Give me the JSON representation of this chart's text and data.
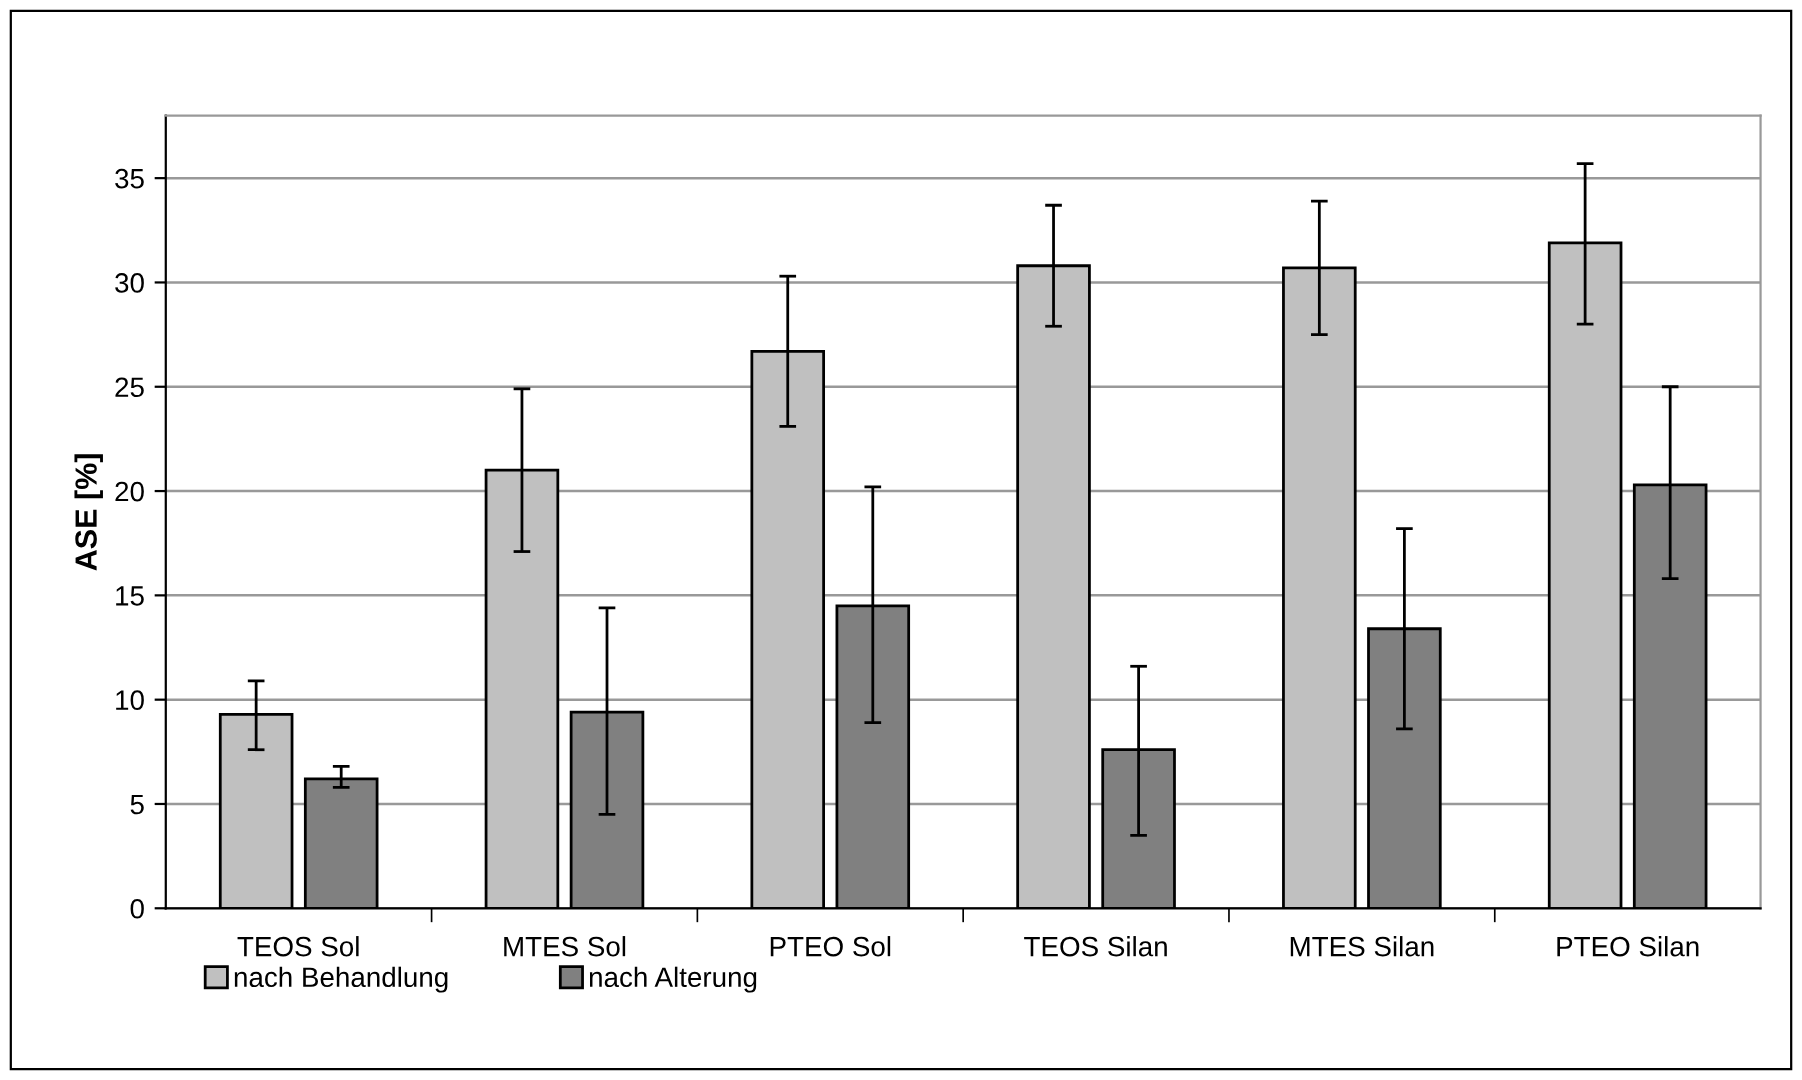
{
  "chart_data": {
    "type": "bar",
    "ylabel": "ASE [%]",
    "categories": [
      "TEOS Sol",
      "MTES Sol",
      "PTEO Sol",
      "TEOS Silan",
      "MTES Silan",
      "PTEO Silan"
    ],
    "series": [
      {
        "name": "nach Behandlung",
        "color": "#c0c0c0",
        "values": [
          9.3,
          21.0,
          26.7,
          30.8,
          30.7,
          31.9
        ],
        "errors": [
          [
            7.6,
            10.9
          ],
          [
            17.1,
            24.9
          ],
          [
            23.1,
            30.3
          ],
          [
            27.9,
            33.7
          ],
          [
            27.5,
            33.9
          ],
          [
            28.0,
            35.7
          ]
        ]
      },
      {
        "name": "nach Alterung",
        "color": "#808080",
        "values": [
          6.2,
          9.4,
          14.5,
          7.6,
          13.4,
          20.3
        ],
        "errors": [
          [
            5.8,
            6.8
          ],
          [
            4.5,
            14.4
          ],
          [
            8.9,
            20.2
          ],
          [
            3.5,
            11.6
          ],
          [
            8.6,
            18.2
          ],
          [
            15.8,
            25.0
          ]
        ]
      }
    ],
    "ylim": [
      0,
      38
    ],
    "yticks": [
      0,
      5,
      10,
      15,
      20,
      25,
      30,
      35
    ],
    "grid": "y",
    "legend": "bottom left"
  }
}
